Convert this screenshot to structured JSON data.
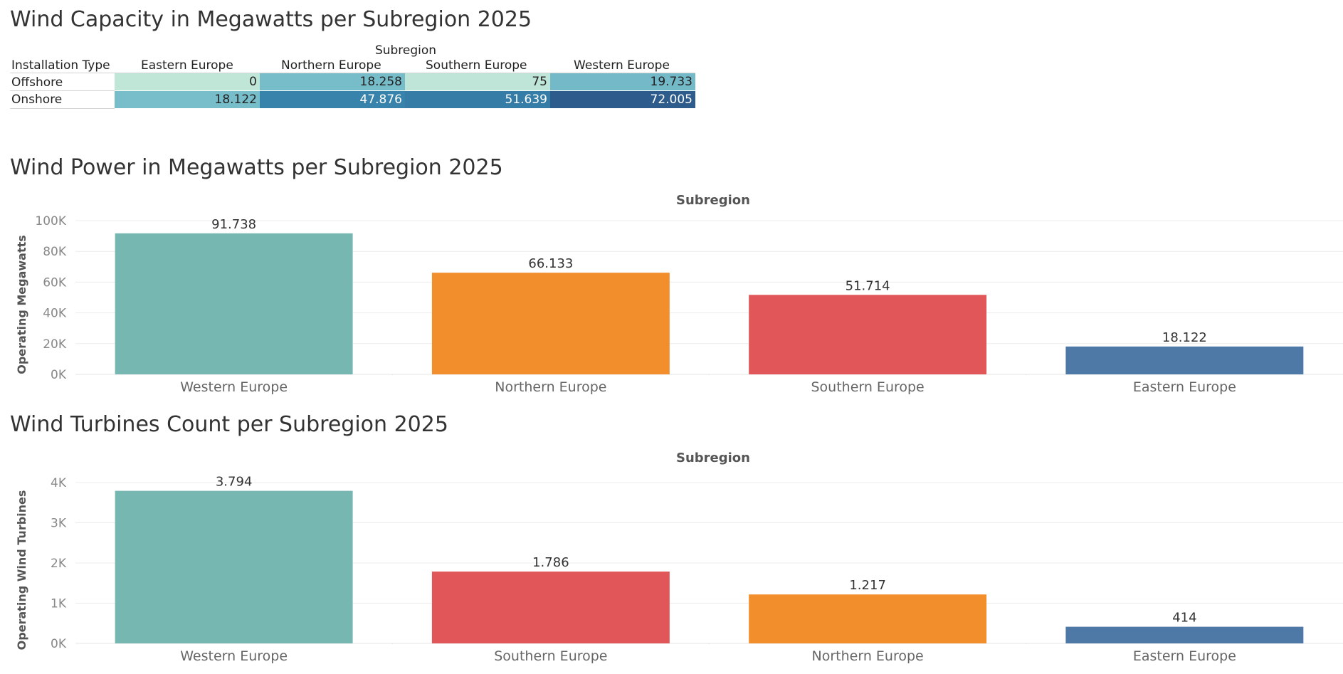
{
  "crosstab": {
    "title": "Wind Capacity in Megawatts per Subregion 2025",
    "column_group_label": "Subregion",
    "row_header_label": "Installation Type",
    "columns": [
      "Eastern Europe",
      "Northern Europe",
      "Southern Europe",
      "Western Europe"
    ],
    "rows": [
      {
        "label": "Offshore",
        "values": [
          "0",
          "18.258",
          "75",
          "19.733"
        ],
        "numbers": [
          0,
          18258,
          75,
          19733
        ]
      },
      {
        "label": "Onshore",
        "values": [
          "18.122",
          "47.876",
          "51.639",
          "72.005"
        ],
        "numbers": [
          18122,
          47876,
          51639,
          72005
        ]
      }
    ],
    "color_scale": [
      "#c0e6d8",
      "#7cc0cb",
      "#3a8db5",
      "#2c5b8c"
    ]
  },
  "chart_data": [
    {
      "type": "bar",
      "title": "Wind Power in Megawatts per Subregion 2025",
      "column_header": "Subregion",
      "ylabel": "Operating Megawatts",
      "categories": [
        "Western Europe",
        "Northern Europe",
        "Southern Europe",
        "Eastern Europe"
      ],
      "values": [
        91738,
        66133,
        51714,
        18122
      ],
      "value_labels": [
        "91.738",
        "66.133",
        "51.714",
        "18.122"
      ],
      "colors": [
        "#76b7b2",
        "#f28e2b",
        "#e15759",
        "#4e79a7"
      ],
      "yticks": [
        0,
        20000,
        40000,
        60000,
        80000,
        100000
      ],
      "ytick_labels": [
        "0K",
        "20K",
        "40K",
        "60K",
        "80K",
        "100K"
      ],
      "ylim": [
        0,
        100000
      ],
      "grid": true
    },
    {
      "type": "bar",
      "title": "Wind Turbines Count per Subregion 2025",
      "column_header": "Subregion",
      "ylabel": "Operating Wind Turbines",
      "categories": [
        "Western Europe",
        "Southern Europe",
        "Northern Europe",
        "Eastern Europe"
      ],
      "values": [
        3794,
        1786,
        1217,
        414
      ],
      "value_labels": [
        "3.794",
        "1.786",
        "1.217",
        "414"
      ],
      "colors": [
        "#76b7b2",
        "#e15759",
        "#f28e2b",
        "#4e79a7"
      ],
      "yticks": [
        0,
        1000,
        2000,
        3000,
        4000
      ],
      "ytick_labels": [
        "0K",
        "1K",
        "2K",
        "3K",
        "4K"
      ],
      "ylim": [
        0,
        4000
      ],
      "grid": true
    }
  ]
}
